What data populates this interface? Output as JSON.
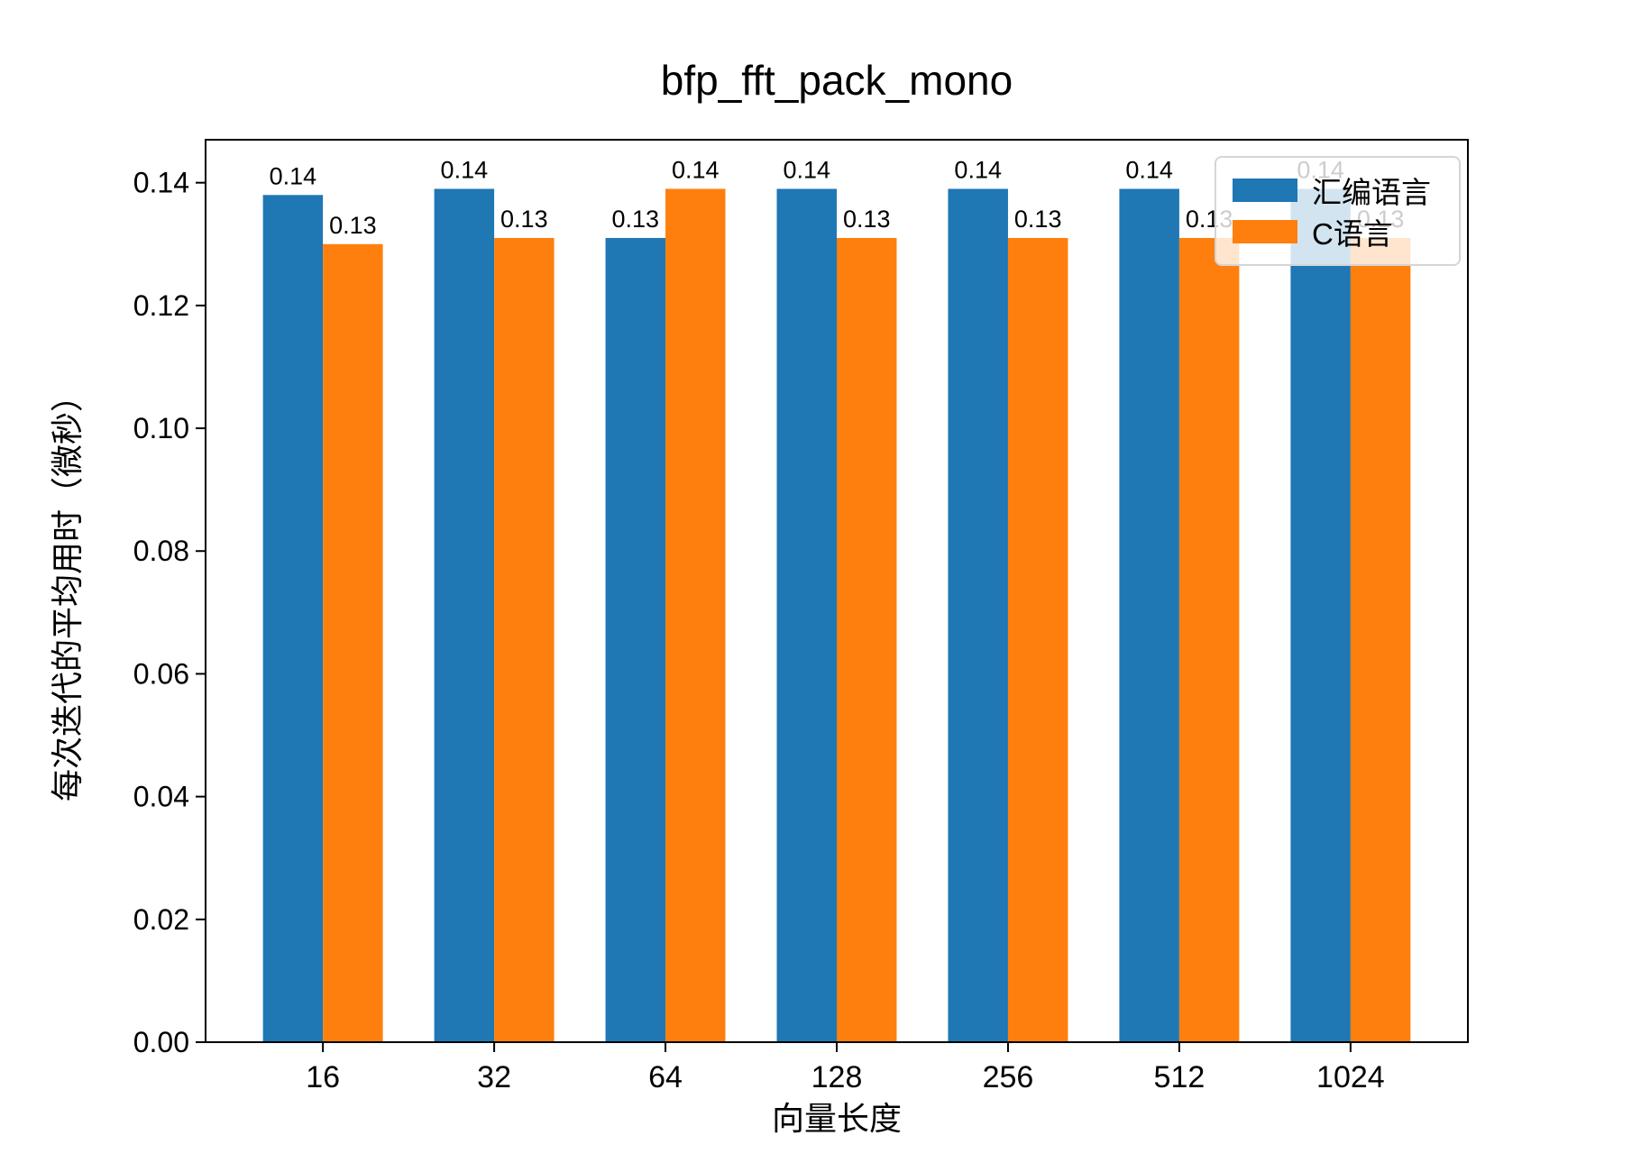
{
  "title": "bfp_fft_pack_mono",
  "axes": {
    "x_label": "向量长度",
    "y_label": "每次迭代的平均用时（微秒）",
    "x_tick_labels": [
      "16",
      "32",
      "64",
      "128",
      "256",
      "512",
      "1024"
    ],
    "y_tick_labels": [
      "0.00",
      "0.02",
      "0.04",
      "0.06",
      "0.08",
      "0.10",
      "0.12",
      "0.14"
    ]
  },
  "legend": {
    "items": [
      {
        "label": "汇编语言",
        "color": "#1f77b4"
      },
      {
        "label": "C语言",
        "color": "#ff7f0e"
      }
    ]
  },
  "chart_data": {
    "type": "bar",
    "title": "bfp_fft_pack_mono",
    "xlabel": "向量长度",
    "ylabel": "每次迭代的平均用时（微秒）",
    "categories": [
      "16",
      "32",
      "64",
      "128",
      "256",
      "512",
      "1024"
    ],
    "series": [
      {
        "name": "汇编语言",
        "color": "#1f77b4",
        "values": [
          0.138,
          0.139,
          0.131,
          0.139,
          0.139,
          0.139,
          0.139
        ],
        "value_labels": [
          "0.14",
          "0.14",
          "0.13",
          "0.14",
          "0.14",
          "0.14",
          "0.14"
        ]
      },
      {
        "name": "C语言",
        "color": "#ff7f0e",
        "values": [
          0.13,
          0.131,
          0.139,
          0.131,
          0.131,
          0.131,
          0.131
        ],
        "value_labels": [
          "0.13",
          "0.13",
          "0.14",
          "0.13",
          "0.13",
          "0.13",
          "0.13"
        ]
      }
    ],
    "y_ticks": [
      0.0,
      0.02,
      0.04,
      0.06,
      0.08,
      0.1,
      0.12,
      0.14
    ],
    "ylim": [
      0,
      0.147
    ],
    "grid": false,
    "legend_position": "upper right",
    "bar_value_labels": true
  },
  "colors": {
    "assembly": "#1f77b4",
    "c_language": "#ff7f0e",
    "background": "#ffffff",
    "text": "#000000",
    "axis": "#000000",
    "legend_border": "#d5d5d5"
  }
}
